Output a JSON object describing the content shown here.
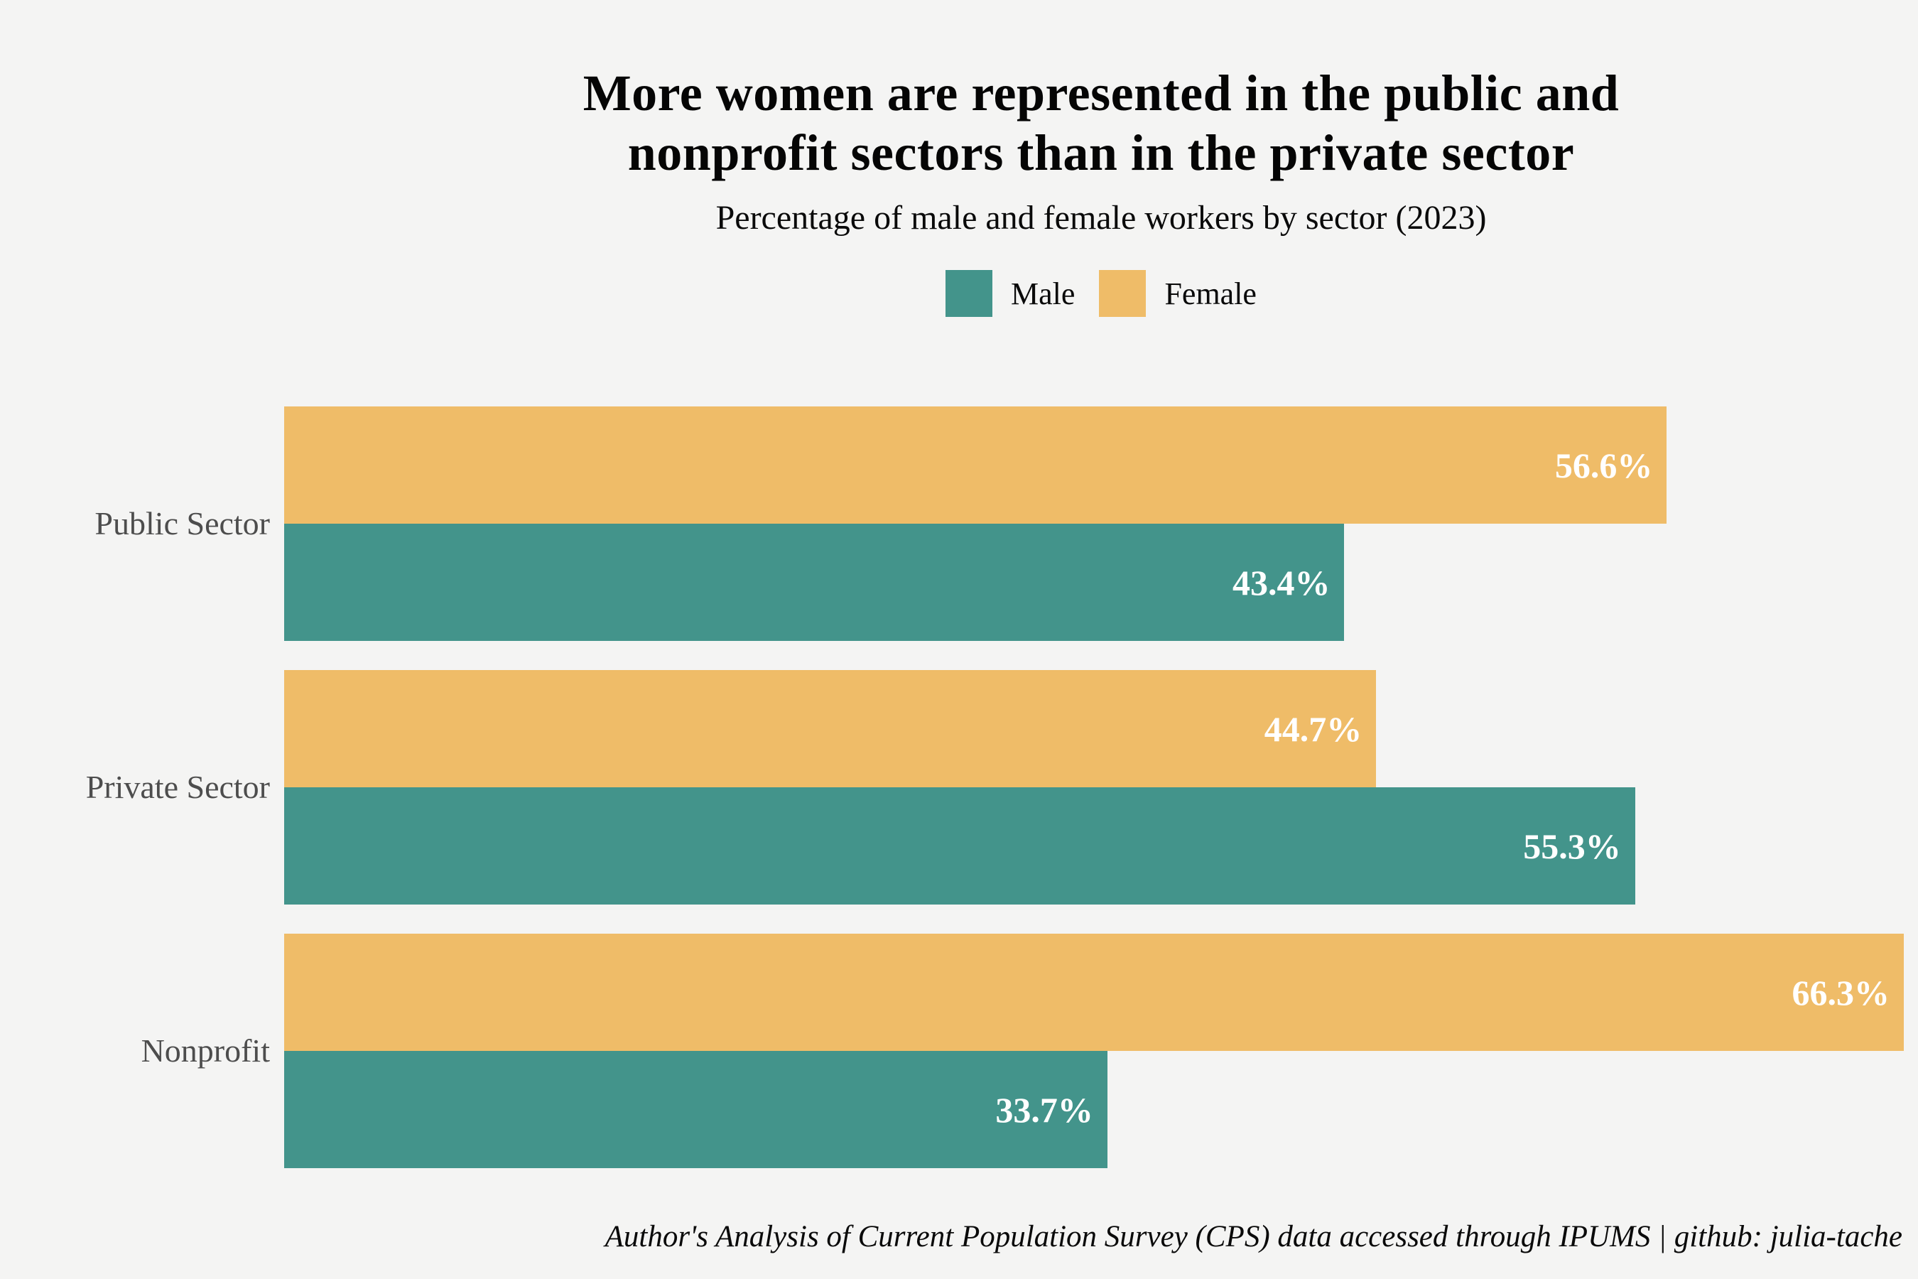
{
  "title": {
    "line1": "More women are represented in the public and",
    "line2": "nonprofit sectors than in the private sector"
  },
  "subtitle": "Percentage of male and female workers by sector (2023)",
  "legend": {
    "male_label": "Male",
    "female_label": "Female"
  },
  "colors": {
    "male": "#43948B",
    "female": "#EFBC68",
    "background": "#F4F4F3",
    "category_text": "#4D4D4D",
    "value_text": "#FFFFFF"
  },
  "source": "Author's Analysis of Current Population Survey (CPS) data accessed through IPUMS | github: julia-tache",
  "chart_data": {
    "type": "bar",
    "orientation": "horizontal",
    "title": "More women are represented in the public and nonprofit sectors than in the private sector",
    "subtitle": "Percentage of male and female workers by sector (2023)",
    "categories": [
      "Public Sector",
      "Private Sector",
      "Nonprofit"
    ],
    "series": [
      {
        "name": "Male",
        "color": "#43948B",
        "values": [
          43.4,
          55.3,
          33.7
        ],
        "display": [
          "43.4%",
          "55.3%",
          "33.7%"
        ]
      },
      {
        "name": "Female",
        "color": "#EFBC68",
        "values": [
          56.6,
          44.7,
          66.3
        ],
        "display": [
          "56.6%",
          "44.7%",
          "66.3%"
        ]
      }
    ],
    "bar_order_within_group": [
      "Female",
      "Male"
    ],
    "value_labels": "inside-end",
    "legend_position": "top-center",
    "grid": "off",
    "axes_shown": false,
    "xlim": [
      0,
      66.3
    ]
  }
}
